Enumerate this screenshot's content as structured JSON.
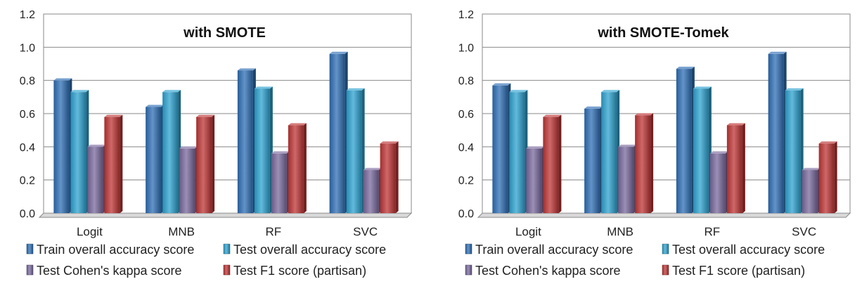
{
  "chart_data": [
    {
      "type": "bar",
      "title": "with SMOTE",
      "categories": [
        "Logit",
        "MNB",
        "RF",
        "SVC"
      ],
      "ylim": [
        0,
        1.2
      ],
      "yticks": [
        "0.0",
        "0.2",
        "0.4",
        "0.6",
        "0.8",
        "1.0",
        "1.2"
      ],
      "grid": true,
      "legend_position": "bottom",
      "series": [
        {
          "name": "Train overall accuracy score",
          "color": "#2f6fb5",
          "values": [
            0.8,
            0.64,
            0.86,
            0.96
          ]
        },
        {
          "name": "Test overall accuracy score",
          "color": "#2ea3d0",
          "values": [
            0.73,
            0.73,
            0.75,
            0.74
          ]
        },
        {
          "name": "Test Cohen's kappa score",
          "color": "#7a6a9e",
          "values": [
            0.4,
            0.39,
            0.36,
            0.26
          ]
        },
        {
          "name": "Test F1 score (partisan)",
          "color": "#bf3636",
          "values": [
            0.58,
            0.58,
            0.53,
            0.42
          ]
        }
      ]
    },
    {
      "type": "bar",
      "title": "with SMOTE-Tomek",
      "categories": [
        "Logit",
        "MNB",
        "RF",
        "SVC"
      ],
      "ylim": [
        0,
        1.2
      ],
      "yticks": [
        "0.0",
        "0.2",
        "0.4",
        "0.6",
        "0.8",
        "1.0",
        "1.2"
      ],
      "grid": true,
      "legend_position": "bottom",
      "series": [
        {
          "name": "Train overall accuracy score",
          "color": "#2f6fb5",
          "values": [
            0.77,
            0.63,
            0.87,
            0.96
          ]
        },
        {
          "name": "Test overall accuracy score",
          "color": "#2ea3d0",
          "values": [
            0.73,
            0.73,
            0.75,
            0.74
          ]
        },
        {
          "name": "Test Cohen's kappa score",
          "color": "#7a6a9e",
          "values": [
            0.39,
            0.4,
            0.36,
            0.26
          ]
        },
        {
          "name": "Test F1 score (partisan)",
          "color": "#bf3636",
          "values": [
            0.58,
            0.59,
            0.53,
            0.42
          ]
        }
      ]
    }
  ]
}
